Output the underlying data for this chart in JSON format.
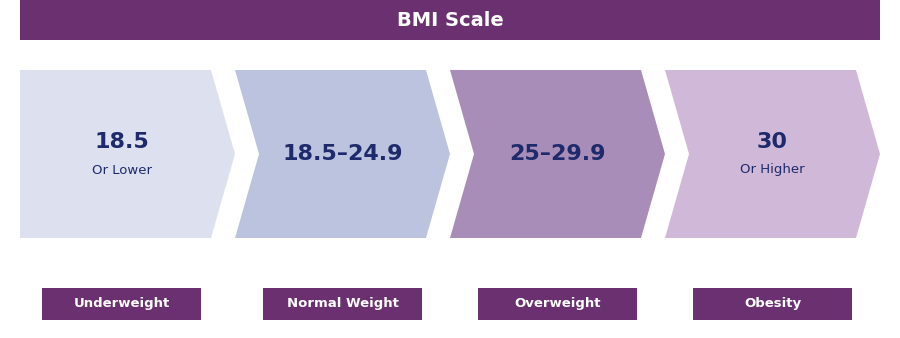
{
  "title": "BMI Scale",
  "title_bg": "#6b3070",
  "title_color": "#ffffff",
  "bg_color": "#ffffff",
  "arrows": [
    {
      "label_main": "18.5",
      "label_sub": "Or Lower",
      "color": "#dde0ee",
      "label_color": "#1e2a6b"
    },
    {
      "label_main": "18.5–24.9",
      "label_sub": "",
      "color": "#bbc3de",
      "label_color": "#1e2a6b"
    },
    {
      "label_main": "25–29.9",
      "label_sub": "",
      "color": "#a88db8",
      "label_color": "#1e2a6b"
    },
    {
      "label_main": "30",
      "label_sub": "Or Higher",
      "color": "#d0b8d8",
      "label_color": "#1e2a6b"
    }
  ],
  "badges": [
    "Underweight",
    "Normal Weight",
    "Overweight",
    "Obesity"
  ],
  "badge_bg": "#6b3070",
  "badge_color": "#ffffff",
  "fig_width": 9.0,
  "fig_height": 3.38,
  "dpi": 100
}
